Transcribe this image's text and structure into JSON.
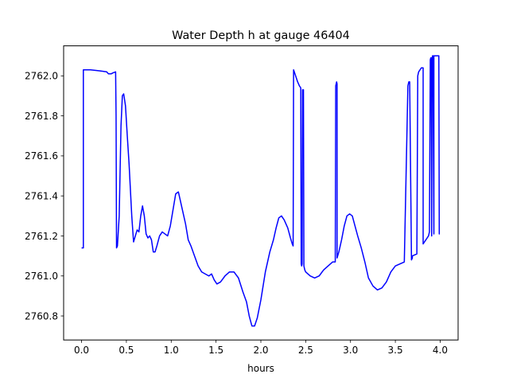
{
  "chart_data": {
    "type": "line",
    "title": "Water Depth h at gauge 46404",
    "xlabel": "hours",
    "ylabel": "",
    "xlim": [
      -0.2,
      4.2
    ],
    "ylim": [
      2760.68,
      2762.15
    ],
    "xticks": [
      0.0,
      0.5,
      1.0,
      1.5,
      2.0,
      2.5,
      3.0,
      3.5,
      4.0
    ],
    "xtick_labels": [
      "0.0",
      "0.5",
      "1.0",
      "1.5",
      "2.0",
      "2.5",
      "3.0",
      "3.5",
      "4.0"
    ],
    "yticks": [
      2760.8,
      2761.0,
      2761.2,
      2761.4,
      2761.6,
      2761.8,
      2762.0
    ],
    "ytick_labels": [
      "2760.8",
      "2761.0",
      "2761.2",
      "2761.4",
      "2761.6",
      "2761.8",
      "2762.0"
    ],
    "grid": false,
    "series": [
      {
        "color": "#0000ff",
        "x": [
          0.0,
          0.02,
          0.02,
          0.05,
          0.1,
          0.2,
          0.28,
          0.3,
          0.33,
          0.35,
          0.38,
          0.385,
          0.39,
          0.4,
          0.42,
          0.44,
          0.455,
          0.47,
          0.49,
          0.51,
          0.53,
          0.56,
          0.58,
          0.6,
          0.62,
          0.64,
          0.66,
          0.68,
          0.7,
          0.72,
          0.74,
          0.76,
          0.78,
          0.8,
          0.82,
          0.84,
          0.87,
          0.9,
          0.93,
          0.96,
          0.99,
          1.02,
          1.05,
          1.08,
          1.1,
          1.13,
          1.16,
          1.19,
          1.22,
          1.26,
          1.3,
          1.34,
          1.38,
          1.42,
          1.45,
          1.48,
          1.51,
          1.55,
          1.6,
          1.65,
          1.7,
          1.75,
          1.8,
          1.84,
          1.87,
          1.9,
          1.93,
          1.96,
          2.0,
          2.05,
          2.1,
          2.14,
          2.17,
          2.2,
          2.23,
          2.26,
          2.3,
          2.33,
          2.35,
          2.36,
          2.365,
          2.38,
          2.41,
          2.43,
          2.445,
          2.45,
          2.455,
          2.46,
          2.465,
          2.47,
          2.475,
          2.48,
          2.485,
          2.49,
          2.5,
          2.55,
          2.6,
          2.65,
          2.7,
          2.75,
          2.8,
          2.82,
          2.83,
          2.835,
          2.84,
          2.845,
          2.85,
          2.85,
          2.87,
          2.9,
          2.93,
          2.96,
          2.99,
          3.02,
          3.05,
          3.08,
          3.12,
          3.16,
          3.2,
          3.25,
          3.3,
          3.35,
          3.4,
          3.45,
          3.5,
          3.55,
          3.6,
          3.64,
          3.645,
          3.65,
          3.66,
          3.68,
          3.69,
          3.69,
          3.74,
          3.75,
          3.76,
          3.79,
          3.81,
          3.81,
          3.87,
          3.88,
          3.89,
          3.895,
          3.9,
          3.905,
          3.91,
          3.915,
          3.92,
          3.93,
          3.93,
          3.935,
          3.94,
          3.97,
          3.98,
          3.985,
          3.99,
          3.995
        ],
        "y": [
          2761.14,
          2761.14,
          2762.03,
          2762.03,
          2762.03,
          2762.025,
          2762.02,
          2762.01,
          2762.01,
          2762.015,
          2762.02,
          2761.8,
          2761.14,
          2761.15,
          2761.3,
          2761.75,
          2761.9,
          2761.91,
          2761.85,
          2761.7,
          2761.56,
          2761.3,
          2761.17,
          2761.2,
          2761.23,
          2761.22,
          2761.3,
          2761.35,
          2761.3,
          2761.21,
          2761.19,
          2761.2,
          2761.18,
          2761.12,
          2761.12,
          2761.15,
          2761.2,
          2761.22,
          2761.21,
          2761.2,
          2761.25,
          2761.33,
          2761.41,
          2761.42,
          2761.38,
          2761.32,
          2761.26,
          2761.18,
          2761.15,
          2761.1,
          2761.05,
          2761.02,
          2761.01,
          2761.0,
          2761.01,
          2760.98,
          2760.96,
          2760.97,
          2761.0,
          2761.02,
          2761.02,
          2760.99,
          2760.92,
          2760.87,
          2760.8,
          2760.75,
          2760.75,
          2760.79,
          2760.88,
          2761.02,
          2761.12,
          2761.18,
          2761.24,
          2761.29,
          2761.3,
          2761.28,
          2761.24,
          2761.19,
          2761.16,
          2761.15,
          2762.03,
          2762.01,
          2761.97,
          2761.95,
          2761.94,
          2761.06,
          2761.05,
          2761.06,
          2761.93,
          2761.93,
          2761.93,
          2761.05,
          2761.04,
          2761.03,
          2761.02,
          2761.0,
          2760.99,
          2761.0,
          2761.03,
          2761.05,
          2761.07,
          2761.07,
          2761.07,
          2761.95,
          2761.96,
          2761.97,
          2761.96,
          2761.09,
          2761.12,
          2761.18,
          2761.25,
          2761.3,
          2761.31,
          2761.3,
          2761.25,
          2761.2,
          2761.14,
          2761.07,
          2760.99,
          2760.95,
          2760.93,
          2760.94,
          2760.97,
          2761.02,
          2761.05,
          2761.06,
          2761.07,
          2761.95,
          2761.96,
          2761.97,
          2761.97,
          2761.08,
          2761.09,
          2761.1,
          2761.11,
          2762.0,
          2762.02,
          2762.04,
          2762.04,
          2761.16,
          2761.2,
          2761.22,
          2762.08,
          2762.09,
          2762.09,
          2761.2,
          2762.09,
          2762.1,
          2762.1,
          2761.21,
          2762.1,
          2762.1,
          2762.1,
          2762.1,
          2762.1,
          2762.1,
          2761.21,
          2761.21
        ]
      }
    ]
  }
}
